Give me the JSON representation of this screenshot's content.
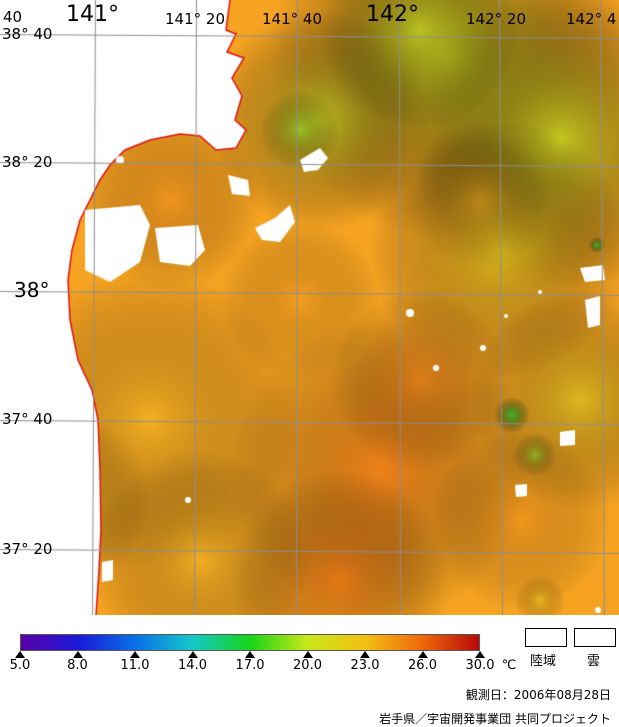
{
  "map": {
    "lon_labels": [
      {
        "text": "40",
        "size": "sm"
      },
      {
        "text": "141°",
        "size": "big"
      },
      {
        "text": "141° 20",
        "size": "sm"
      },
      {
        "text": "141° 40",
        "size": "sm"
      },
      {
        "text": "142°",
        "size": "big"
      },
      {
        "text": "142° 20",
        "size": "sm"
      },
      {
        "text": "142° 4",
        "size": "sm"
      }
    ],
    "lat_labels": [
      {
        "text": "38° 40",
        "size": "sm"
      },
      {
        "text": "38° 20",
        "size": "sm"
      },
      {
        "text": "38°",
        "size": "big"
      },
      {
        "text": "37° 40",
        "size": "sm"
      },
      {
        "text": "37° 20",
        "size": "sm"
      }
    ],
    "colors": {
      "land": "#ffffff",
      "coast": "#e81010",
      "grid": "#8e8e8e",
      "sea_main": "#f5a321"
    }
  },
  "scale": {
    "gradient_colors": [
      "#5a00a8",
      "#1a1ad8",
      "#0a70e8",
      "#14c8c8",
      "#18d418",
      "#c8e818",
      "#f2c014",
      "#ef6a0a",
      "#b80808"
    ],
    "ticks": [
      "5.0",
      "8.0",
      "11.0",
      "14.0",
      "17.0",
      "20.0",
      "23.0",
      "26.0",
      "30.0"
    ],
    "unit": "℃"
  },
  "legend": {
    "land_label": "陸域",
    "cloud_label": "雲"
  },
  "observation_date": "観測日：2006年08月28日",
  "credit": "岩手県／宇宙開発事業団  共同プロジェクト"
}
